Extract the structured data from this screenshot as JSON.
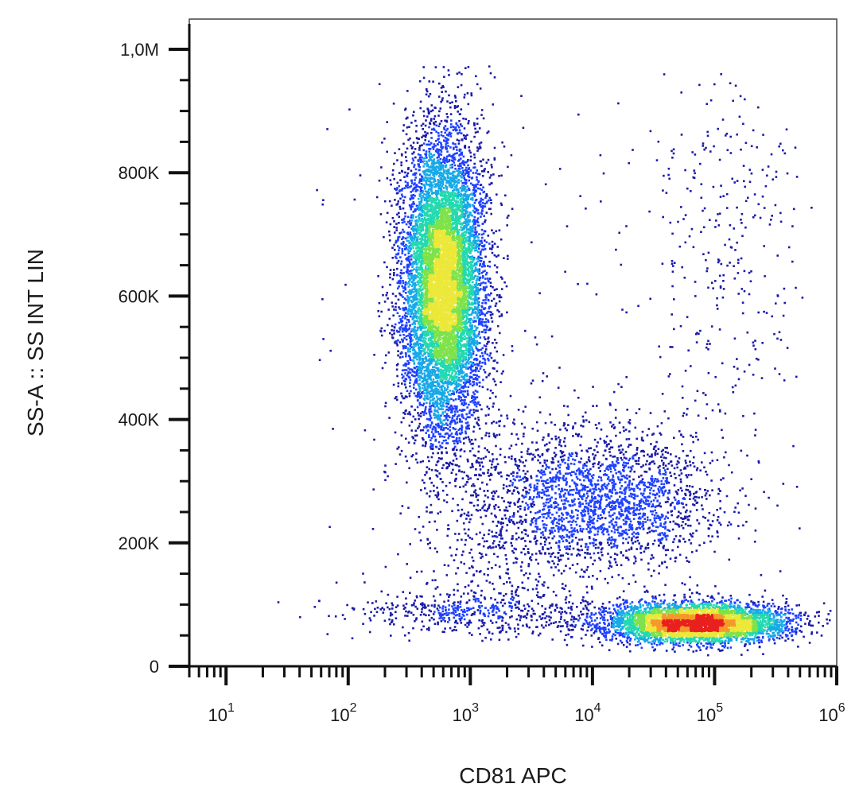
{
  "chart_data": {
    "type": "scatter",
    "style": "density-colored flow cytometry dot plot",
    "title": "",
    "xlabel": "CD81 APC",
    "ylabel": "SS-A :: SS INT LIN",
    "x_scale": "log",
    "y_scale": "linear",
    "xlim": [
      5,
      1000000
    ],
    "ylim": [
      0,
      1050000
    ],
    "grid": false,
    "x_ticks": [
      {
        "value": 10,
        "base": "10",
        "exp": "1"
      },
      {
        "value": 100,
        "base": "10",
        "exp": "2"
      },
      {
        "value": 1000,
        "base": "10",
        "exp": "3"
      },
      {
        "value": 10000,
        "base": "10",
        "exp": "4"
      },
      {
        "value": 100000,
        "base": "10",
        "exp": "5"
      },
      {
        "value": 1000000,
        "base": "10",
        "exp": "6"
      }
    ],
    "y_ticks": [
      {
        "value": 0,
        "label": "0"
      },
      {
        "value": 200000,
        "label": "200K"
      },
      {
        "value": 400000,
        "label": "400K"
      },
      {
        "value": 600000,
        "label": "600K"
      },
      {
        "value": 800000,
        "label": "800K"
      },
      {
        "value": 1000000,
        "label": "1,0M"
      }
    ],
    "populations": [
      {
        "x_center": 600,
        "y_center": 620000,
        "x_spread_decades": 0.17,
        "y_spread": 120000,
        "count": 9000
      },
      {
        "x_center": 70000,
        "y_center": 70000,
        "x_spread_decades": 0.38,
        "y_spread": 16000,
        "count": 4500
      },
      {
        "x_center": 15000,
        "y_center": 270000,
        "x_spread_decades": 0.45,
        "y_spread": 55000,
        "count": 1800
      },
      {
        "x_center": 2500,
        "y_center": 250000,
        "x_spread_decades": 0.45,
        "y_spread": 90000,
        "count": 800
      },
      {
        "x_center": 1200,
        "y_center": 90000,
        "x_spread_decades": 0.55,
        "y_spread": 20000,
        "count": 500
      },
      {
        "x_center": 120000,
        "y_center": 700000,
        "x_spread_decades": 0.3,
        "y_spread": 180000,
        "count": 280
      }
    ],
    "density_colors": [
      "#1a1aa8",
      "#1e40ff",
      "#17a9e8",
      "#24d9b0",
      "#7ee24a",
      "#ece83a",
      "#f59a2a",
      "#e8201e"
    ]
  }
}
